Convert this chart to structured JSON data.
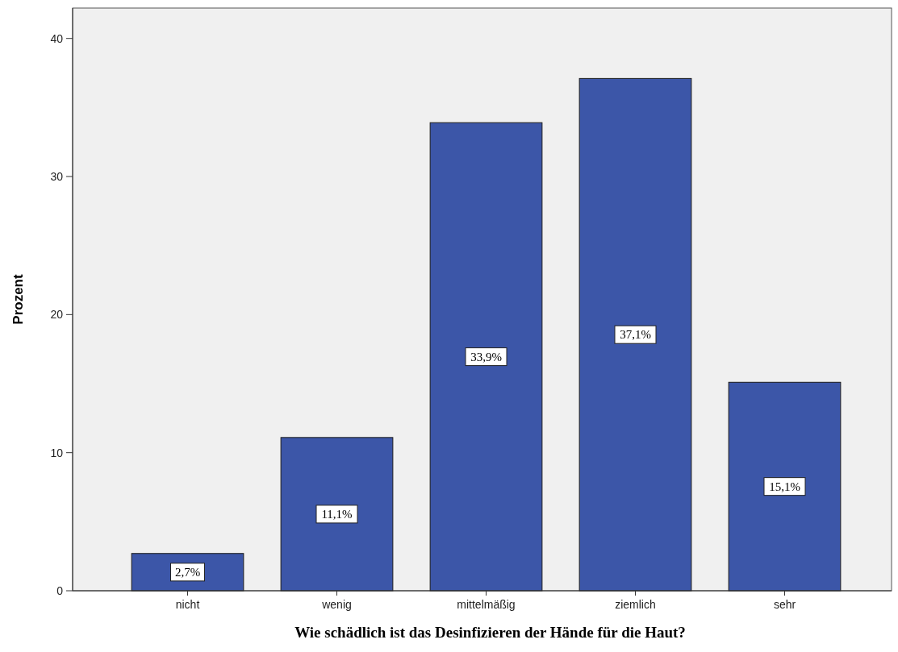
{
  "chart_data": {
    "type": "bar",
    "xlabel": "Wie schädlich ist das Desinfizieren der Hände für die Haut?",
    "ylabel": "Prozent",
    "categories": [
      "nicht",
      "wenig",
      "mittelmäßig",
      "ziemlich",
      "sehr"
    ],
    "values": [
      2.7,
      11.1,
      33.9,
      37.1,
      15.1
    ],
    "value_labels": [
      "2,7%",
      "11,1%",
      "33,9%",
      "37,1%",
      "15,1%"
    ],
    "color": "#3c56a8",
    "ylim": [
      0,
      42.2
    ],
    "yticks": [
      0,
      10,
      20,
      30,
      40
    ],
    "grid": false
  }
}
